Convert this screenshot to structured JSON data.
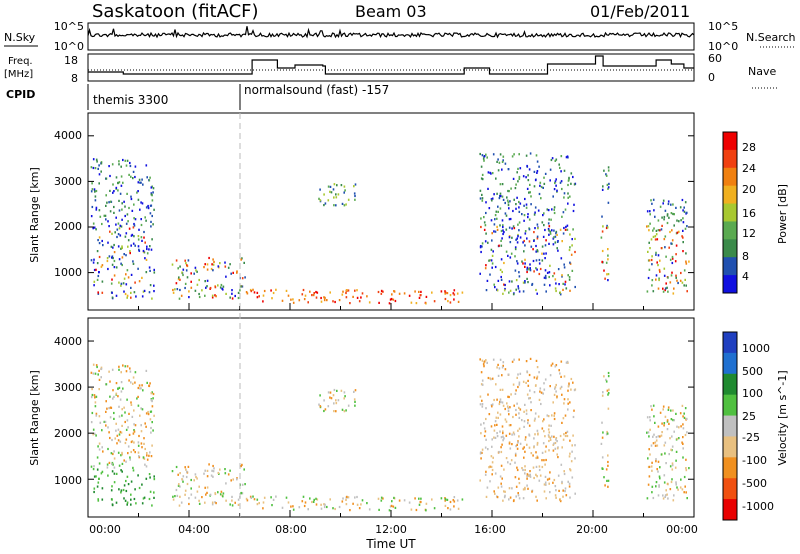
{
  "header": {
    "station": "Saskatoon (fitACF)",
    "beam": "Beam 03",
    "date": "01/Feb/2011"
  },
  "top_panels": {
    "nsky_label": "N.Sky",
    "nsky_ticks": [
      "10^5",
      "10^0"
    ],
    "nsearch_label": "N.Search",
    "nsearch_ticks": [
      "10^5",
      "10^0"
    ],
    "freq_label_1": "Freq.",
    "freq_label_2": "[MHz]",
    "freq_ticks": [
      "18",
      "8"
    ],
    "nave_label": "Nave",
    "nave_ticks": [
      "60",
      "0"
    ],
    "cpid_label": "CPID",
    "cpid_programs": [
      "themis 3300",
      "normalsound (fast) -157"
    ]
  },
  "colors": {
    "power_scale": [
      "#1010e0",
      "#2050b0",
      "#3a8a4a",
      "#5aaa50",
      "#a8c830",
      "#f0b020",
      "#f08010",
      "#f04010",
      "#ee0000"
    ],
    "velocity_scale": [
      "#2040c0",
      "#2070d0",
      "#208a30",
      "#50c040",
      "#c0c0c0",
      "#e8c080",
      "#f09020",
      "#f05010",
      "#e80000"
    ]
  },
  "chart_data": [
    {
      "type": "heatmap",
      "title": "Power",
      "xlabel": "",
      "ylabel": "Slant Range [km]",
      "ylim": [
        180,
        4500
      ],
      "yticks": [
        "1000",
        "2000",
        "3000",
        "4000"
      ],
      "colorbar_label": "Power [dB]",
      "colorbar_ticks": [
        "4",
        "8",
        "12",
        "16",
        "20",
        "24",
        "28"
      ],
      "x_hours": [
        0,
        24
      ],
      "scatter_regions_hours_km": [
        {
          "t": [
            0.1,
            2.6
          ],
          "r": [
            400,
            3500
          ],
          "level": "mixed-high"
        },
        {
          "t": [
            3.3,
            6.2
          ],
          "r": [
            400,
            1300
          ],
          "level": "mixed"
        },
        {
          "t": [
            6.2,
            15.0
          ],
          "r": [
            300,
            600
          ],
          "level": "high"
        },
        {
          "t": [
            9.0,
            10.6
          ],
          "r": [
            2450,
            2950
          ],
          "level": "mid"
        },
        {
          "t": [
            15.5,
            19.3
          ],
          "r": [
            500,
            3600
          ],
          "level": "mixed-high"
        },
        {
          "t": [
            20.3,
            20.6
          ],
          "r": [
            600,
            3400
          ],
          "level": "mixed"
        },
        {
          "t": [
            22.1,
            23.8
          ],
          "r": [
            500,
            2600
          ],
          "level": "mixed"
        }
      ]
    },
    {
      "type": "heatmap",
      "title": "Velocity",
      "xlabel": "Time UT",
      "ylabel": "Slant Range [km]",
      "ylim": [
        180,
        4500
      ],
      "yticks": [
        "1000",
        "2000",
        "3000",
        "4000"
      ],
      "xticks": [
        "00:00",
        "04:00",
        "08:00",
        "12:00",
        "16:00",
        "20:00",
        "00:00"
      ],
      "colorbar_label": "Velocity [m s^-1]",
      "colorbar_ticks": [
        "1000",
        "500",
        "100",
        "25",
        "-25",
        "-100",
        "-500",
        "-1000"
      ]
    }
  ]
}
